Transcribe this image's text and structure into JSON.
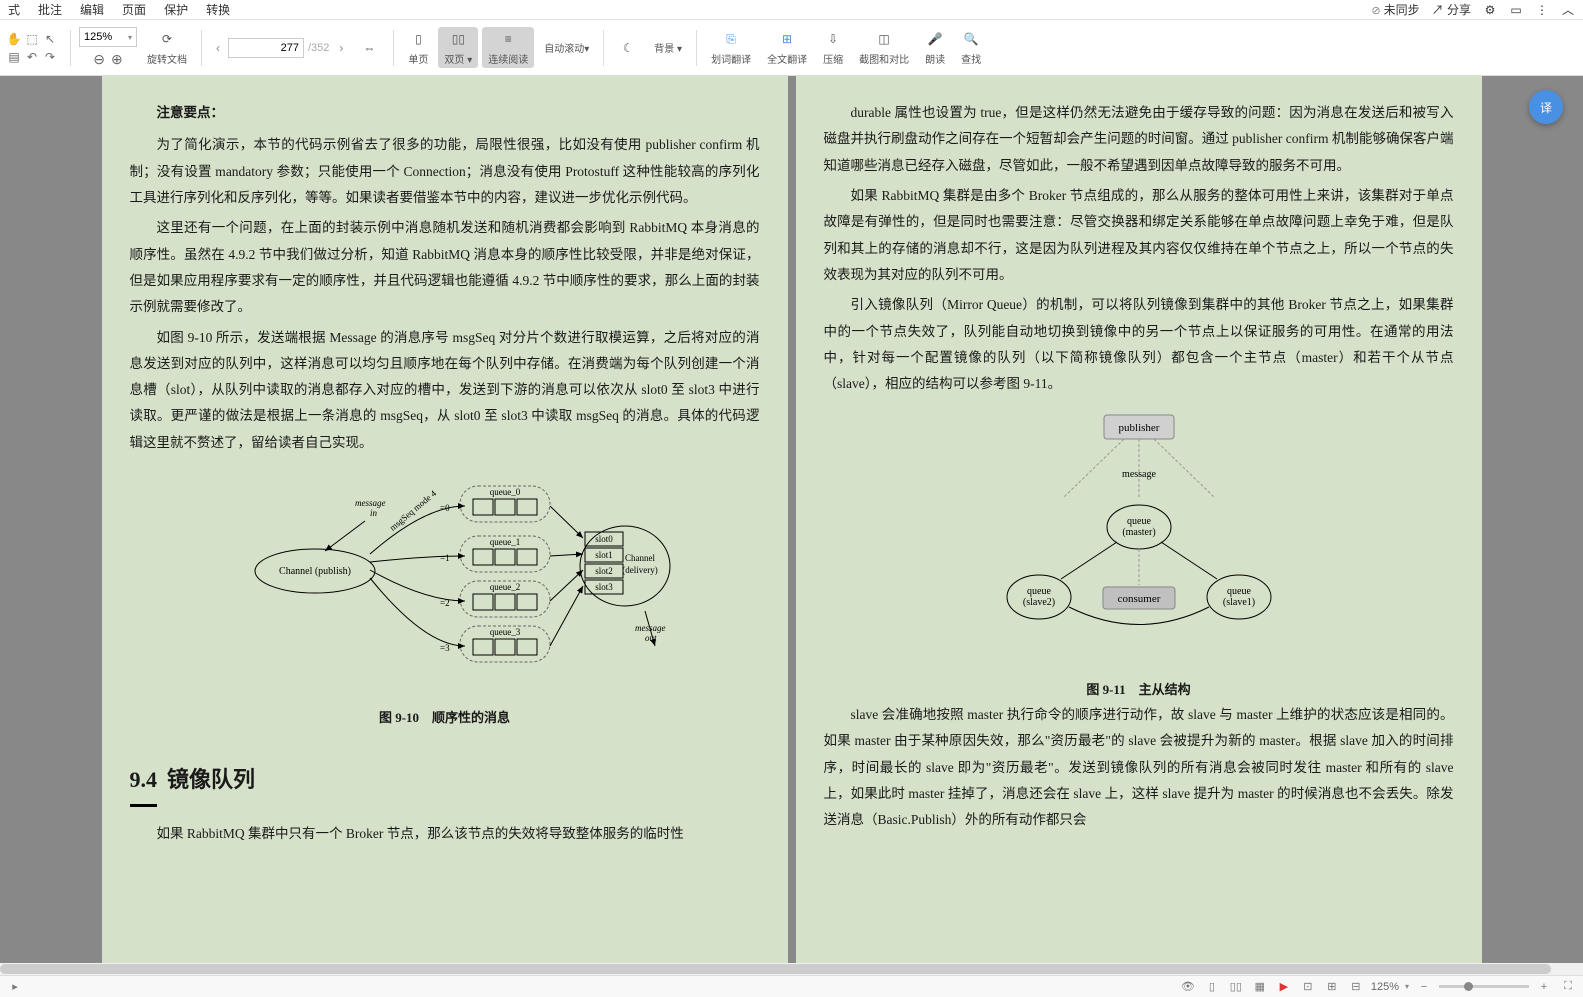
{
  "menu": {
    "items": [
      "式",
      "批注",
      "编辑",
      "页面",
      "保护",
      "转换"
    ],
    "sync": "未同步",
    "share": "分享"
  },
  "toolbar": {
    "zoom": "125%",
    "page_current": "277",
    "page_total": "/352",
    "rotate": "旋转文档",
    "single": "单页",
    "double": "双页",
    "continuous": "连续阅读",
    "autoscroll": "自动滚动",
    "bg": "背景",
    "select_trans": "划词翻译",
    "full_trans": "全文翻译",
    "compress": "压缩",
    "compare": "截图和对比",
    "read": "朗读",
    "find": "查找"
  },
  "left_page": {
    "header": "注意要点：",
    "p1": "为了简化演示，本节的代码示例省去了很多的功能，局限性很强，比如没有使用 publisher confirm 机制；没有设置 mandatory 参数；只能使用一个 Connection；消息没有使用 Protostuff 这种性能较高的序列化工具进行序列化和反序列化，等等。如果读者要借鉴本节中的内容，建议进一步优化示例代码。",
    "p2": "这里还有一个问题，在上面的封装示例中消息随机发送和随机消费都会影响到 RabbitMQ 本身消息的顺序性。虽然在 4.9.2 节中我们做过分析，知道 RabbitMQ 消息本身的顺序性比较受限，并非是绝对保证，但是如果应用程序要求有一定的顺序性，并且代码逻辑也能遵循 4.9.2 节中顺序性的要求，那么上面的封装示例就需要修改了。",
    "p3": "如图 9-10 所示，发送端根据 Message 的消息序号 msgSeq 对分片个数进行取模运算，之后将对应的消息发送到对应的队列中，这样消息可以均匀且顺序地在每个队列中存储。在消费端为每个队列创建一个消息槽（slot），从队列中读取的消息都存入对应的槽中，发送到下游的消息可以依次从 slot0 至 slot3 中进行读取。更严谨的做法是根据上一条消息的 msgSeq，从 slot0 至 slot3 中读取 msgSeq 的消息。具体的代码逻辑这里就不赘述了，留给读者自己实现。",
    "fig_caption": "图 9-10　顺序性的消息",
    "section_num": "9.4",
    "section_title": "镜像队列",
    "p4": "如果 RabbitMQ 集群中只有一个 Broker 节点，那么该节点的失效将导致整体服务的临时性",
    "fig": {
      "publish": "Channel (publish)",
      "delivery": "Channel\n(delivery)",
      "msg_in": "message\nin",
      "msg_out": "message\nout",
      "queues": [
        "queue_0",
        "queue_1",
        "queue_2",
        "queue_3"
      ],
      "slots": [
        "slot0",
        "slot1",
        "slot2",
        "slot3"
      ],
      "mode": "msgSeq mode 4",
      "eq": [
        "=0",
        "=1",
        "=2",
        "=3"
      ]
    }
  },
  "right_page": {
    "p1": "durable 属性也设置为 true，但是这样仍然无法避免由于缓存导致的问题：因为消息在发送后和被写入磁盘并执行刷盘动作之间存在一个短暂却会产生问题的时间窗。通过 publisher confirm 机制能够确保客户端知道哪些消息已经存入磁盘，尽管如此，一般不希望遇到因单点故障导致的服务不可用。",
    "p2": "如果 RabbitMQ 集群是由多个 Broker 节点组成的，那么从服务的整体可用性上来讲，该集群对于单点故障是有弹性的，但是同时也需要注意：尽管交换器和绑定关系能够在单点故障问题上幸免于难，但是队列和其上的存储的消息却不行，这是因为队列进程及其内容仅仅维持在单个节点之上，所以一个节点的失效表现为其对应的队列不可用。",
    "p3": "引入镜像队列（Mirror Queue）的机制，可以将队列镜像到集群中的其他 Broker 节点之上，如果集群中的一个节点失效了，队列能自动地切换到镜像中的另一个节点上以保证服务的可用性。在通常的用法中，针对每一个配置镜像的队列（以下简称镜像队列）都包含一个主节点（master）和若干个从节点（slave），相应的结构可以参考图 9-11。",
    "fig_caption": "图 9-11　主从结构",
    "p4": "slave 会准确地按照 master 执行命令的顺序进行动作，故 slave 与 master 上维护的状态应该是相同的。如果 master 由于某种原因失效，那么\"资历最老\"的 slave 会被提升为新的 master。根据 slave 加入的时间排序，时间最长的 slave 即为\"资历最老\"。发送到镜像队列的所有消息会被同时发往 master 和所有的 slave 上，如果此时 master 挂掉了，消息还会在 slave 上，这样 slave 提升为 master 的时候消息也不会丢失。除发送消息（Basic.Publish）外的所有动作都只会",
    "fig": {
      "publisher": "publisher",
      "message": "message",
      "master": "queue\n(master)",
      "slave1": "queue\n(slave1)",
      "slave2": "queue\n(slave2)",
      "consumer": "consumer"
    }
  },
  "status": {
    "zoom": "125%"
  }
}
